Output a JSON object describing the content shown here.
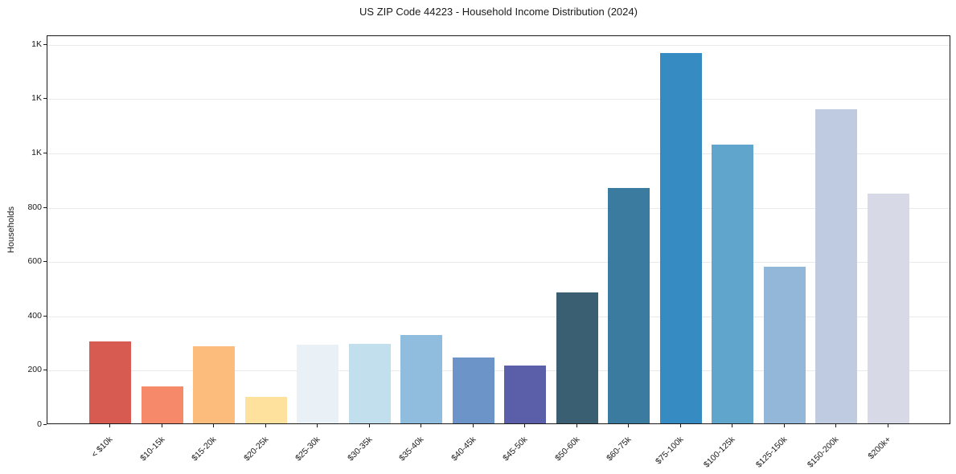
{
  "figure": {
    "background": "#ffffff",
    "text_color": "#1a1a1a",
    "grid_color": "#e9e9e9",
    "spine_color": "#1a1a1a"
  },
  "chart_data": {
    "type": "bar",
    "title": "US ZIP Code 44223 - Household Income Distribution (2024)",
    "xlabel": "",
    "ylabel": "Households",
    "categories": [
      "< $10k",
      "$10-15k",
      "$15-20k",
      "$20-25k",
      "$25-30k",
      "$30-35k",
      "$35-40k",
      "$40-45k",
      "$45-50k",
      "$50-60k",
      "$60-75k",
      "$75-100k",
      "$100-125k",
      "$125-150k",
      "$150-200k",
      "$200k+"
    ],
    "values": [
      302,
      136,
      285,
      99,
      290,
      293,
      325,
      242,
      214,
      483,
      866,
      1364,
      1026,
      577,
      1157,
      845
    ],
    "bar_colors": [
      "#d85b51",
      "#f5896a",
      "#fcbc7c",
      "#fde19c",
      "#e9f1f6",
      "#c2dfee",
      "#90bddd",
      "#6c94c8",
      "#5b5fa9",
      "#3a5f73",
      "#3b7ba0",
      "#368cc2",
      "#5fa5cc",
      "#93b7d9",
      "#bfcbe0",
      "#d8d9e7"
    ],
    "ylim": [
      0,
      1432
    ],
    "yticks": [
      {
        "value": 0,
        "label": "0"
      },
      {
        "value": 200,
        "label": "200"
      },
      {
        "value": 400,
        "label": "400"
      },
      {
        "value": 600,
        "label": "600"
      },
      {
        "value": 800,
        "label": "800"
      },
      {
        "value": 1000,
        "label": "1K"
      },
      {
        "value": 1200,
        "label": "1K"
      },
      {
        "value": 1400,
        "label": "1K"
      }
    ],
    "grid": "horizontal",
    "legend": "none"
  }
}
